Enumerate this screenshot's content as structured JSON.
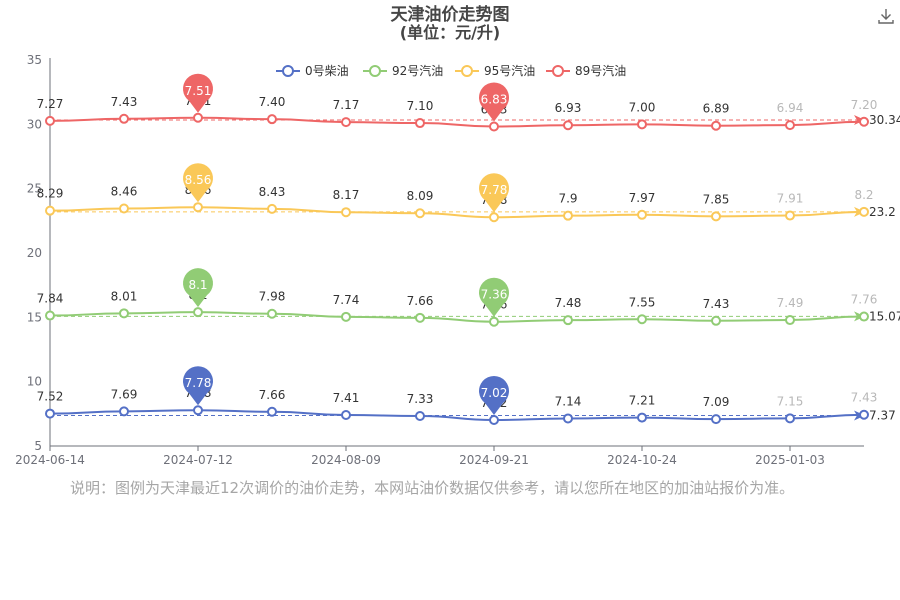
{
  "chart_data": {
    "type": "line",
    "title": "天津油价走势图",
    "subtitle": "(单位：元/升)",
    "ylim": [
      5,
      35
    ],
    "y_ticks": [
      "5",
      "10",
      "15",
      "20",
      "25",
      "30",
      "35"
    ],
    "x_tick_labels": [
      "2024-06-14",
      "2024-07-12",
      "2024-08-09",
      "2024-09-21",
      "2024-10-24",
      "2025-01-03"
    ],
    "x_tick_indices": [
      0,
      2,
      4,
      6,
      8,
      10
    ],
    "num_points": 12,
    "legend_position": "top",
    "grid": false,
    "series": [
      {
        "name": "0号柴油",
        "color": "#5470c6",
        "values": [
          7.52,
          7.69,
          7.78,
          7.66,
          7.41,
          7.33,
          7.02,
          7.14,
          7.21,
          7.09,
          7.15,
          7.43
        ],
        "labels": [
          "7.52",
          "7.69",
          "7.78",
          "7.66",
          "7.41",
          "7.33",
          "7.02",
          "7.14",
          "7.21",
          "7.09",
          "7.15",
          "7.43"
        ],
        "max_index": 2,
        "min_index": 6,
        "average": 7.37,
        "average_label": "7.37"
      },
      {
        "name": "92号汽油",
        "color": "#91cc75",
        "values": [
          7.84,
          8.01,
          8.1,
          7.98,
          7.74,
          7.66,
          7.36,
          7.48,
          7.55,
          7.43,
          7.49,
          7.76
        ],
        "labels": [
          "7.84",
          "8.01",
          "8.1",
          "7.98",
          "7.74",
          "7.66",
          "7.36",
          "7.48",
          "7.55",
          "7.43",
          "7.49",
          "7.76"
        ],
        "max_index": 2,
        "min_index": 6,
        "average": 15.07,
        "average_label": "15.07"
      },
      {
        "name": "95号汽油",
        "color": "#fac858",
        "values": [
          8.29,
          8.46,
          8.56,
          8.43,
          8.17,
          8.09,
          7.78,
          7.9,
          7.97,
          7.85,
          7.91,
          8.2
        ],
        "labels": [
          "8.29",
          "8.46",
          "8.56",
          "8.43",
          "8.17",
          "8.09",
          "7.78",
          "7.9",
          "7.97",
          "7.85",
          "7.91",
          "8.2"
        ],
        "max_index": 2,
        "min_index": 6,
        "average": 23.2,
        "average_label": "23.2"
      },
      {
        "name": "89号汽油",
        "color": "#ee6666",
        "values": [
          7.27,
          7.43,
          7.51,
          7.4,
          7.17,
          7.1,
          6.83,
          6.93,
          7.0,
          6.89,
          6.94,
          7.2
        ],
        "labels": [
          "7.27",
          "7.43",
          "7.51",
          "7.40",
          "7.17",
          "7.10",
          "6.83",
          "6.93",
          "7.00",
          "6.89",
          "6.94",
          "7.20"
        ],
        "max_index": 2,
        "min_index": 6,
        "average": 30.34,
        "average_label": "30.34"
      }
    ]
  },
  "note": "说明：图例为天津最近12次调价的油价走势，本网站油价数据仅供参考，请以您所在地区的加油站报价为准。",
  "toolbar": {
    "download_icon": "download-icon"
  }
}
